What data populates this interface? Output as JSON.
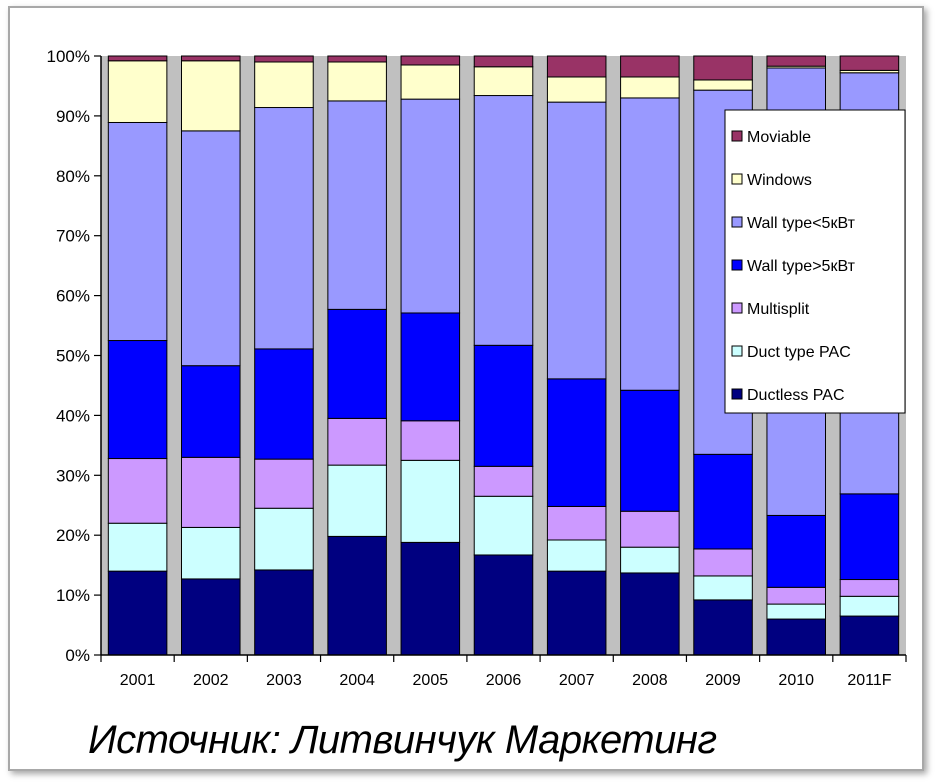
{
  "caption": "Источник: Литвинчук Маркетинг",
  "chart_data": {
    "type": "bar",
    "stacked": true,
    "percent": true,
    "categories": [
      "2001",
      "2002",
      "2003",
      "2004",
      "2005",
      "2006",
      "2007",
      "2008",
      "2009",
      "2010",
      "2011F"
    ],
    "y_ticks": [
      "0%",
      "10%",
      "20%",
      "30%",
      "40%",
      "50%",
      "60%",
      "70%",
      "80%",
      "90%",
      "100%"
    ],
    "ylim": [
      0,
      100
    ],
    "grid": false,
    "legend_position": "right",
    "series": [
      {
        "name": "Ductless PAC",
        "color": "#000080",
        "values": [
          14,
          12.7,
          14.2,
          19.8,
          18.8,
          16.7,
          14,
          13.7,
          9.2,
          6,
          6.5
        ]
      },
      {
        "name": "Duct type PAC",
        "color": "#ccffff",
        "values": [
          8,
          8.6,
          10.3,
          11.9,
          13.7,
          9.8,
          5.2,
          4.3,
          4,
          2.5,
          3.3
        ]
      },
      {
        "name": "Multisplit",
        "color": "#cc99ff",
        "values": [
          10.8,
          11.7,
          8.2,
          7.8,
          6.6,
          5,
          5.6,
          6,
          4.5,
          2.8,
          2.8
        ]
      },
      {
        "name": "Wall type>5кВт",
        "color": "#0000ff",
        "values": [
          19.7,
          15.3,
          18.4,
          18.2,
          18,
          20.2,
          21.3,
          20.2,
          15.8,
          12,
          14.3
        ]
      },
      {
        "name": "Wall type<5кВт",
        "color": "#9999ff",
        "values": [
          36.4,
          39.2,
          40.3,
          34.8,
          35.7,
          41.7,
          46.2,
          48.8,
          60.8,
          74.7,
          70.3
        ]
      },
      {
        "name": "Windows",
        "color": "#ffffcc",
        "values": [
          10.3,
          11.7,
          7.6,
          6.5,
          5.7,
          4.8,
          4.2,
          3.5,
          1.7,
          0.3,
          0.4
        ]
      },
      {
        "name": "Moviable",
        "color": "#993366",
        "values": [
          0.8,
          0.8,
          1,
          1,
          1.5,
          1.8,
          3.5,
          3.5,
          4,
          1.7,
          2.4
        ]
      }
    ],
    "legend_order": [
      "Moviable",
      "Windows",
      "Wall type<5кВт",
      "Wall type>5кВт",
      "Multisplit",
      "Duct type PAC",
      "Ductless PAC"
    ],
    "plot_background": "#c0c0c0"
  }
}
